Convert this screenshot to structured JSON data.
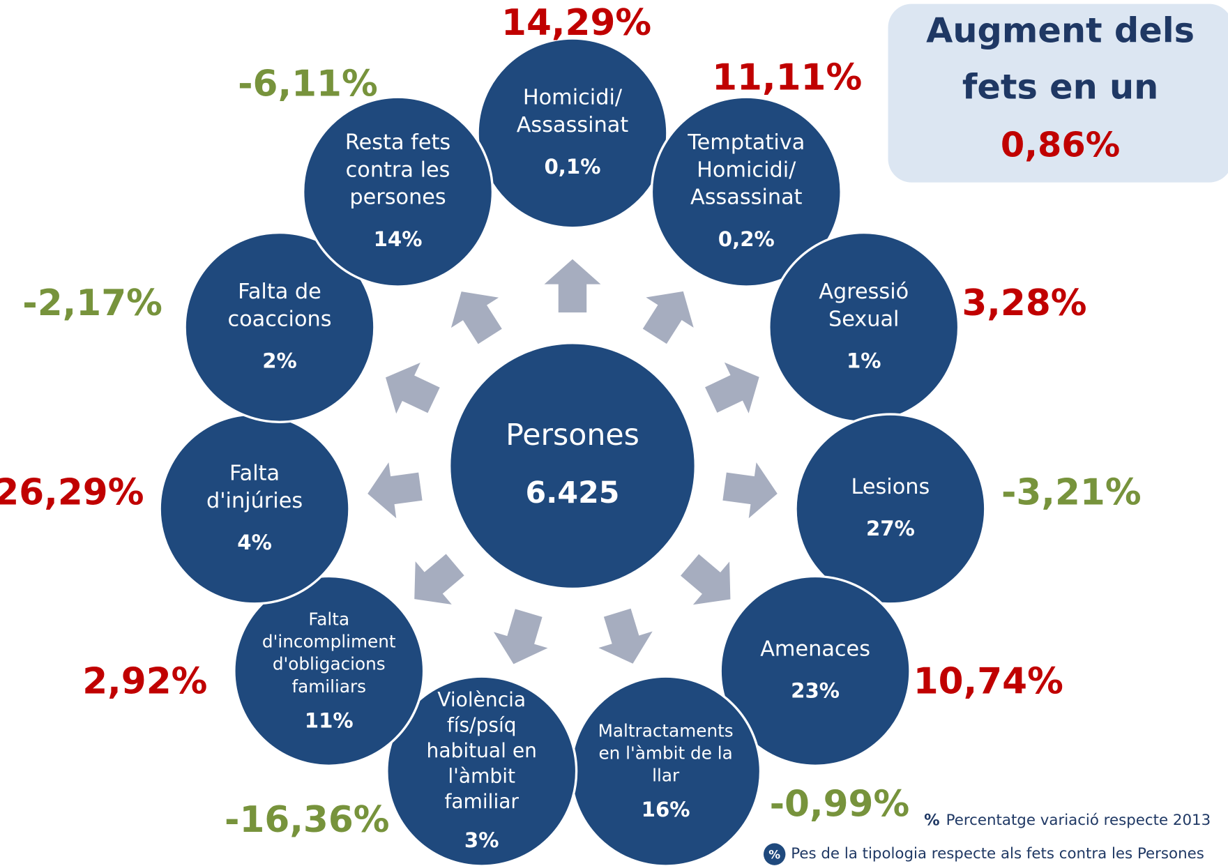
{
  "center": {
    "label": "Persones",
    "value": "6.425"
  },
  "nodes": [
    {
      "label": [
        "Homicidi/",
        "Assassinat"
      ],
      "weight": "0,1%",
      "change": "14,29%",
      "trend": "up"
    },
    {
      "label": [
        "Temptativa",
        "Homicidi/",
        "Assassinat"
      ],
      "weight": "0,2%",
      "change": "11,11%",
      "trend": "up"
    },
    {
      "label": [
        "Agressió",
        "Sexual"
      ],
      "weight": "1%",
      "change": "3,28%",
      "trend": "up"
    },
    {
      "label": [
        "Lesions"
      ],
      "weight": "27%",
      "change": "-3,21%",
      "trend": "down"
    },
    {
      "label": [
        "Amenaces"
      ],
      "weight": "23%",
      "change": "10,74%",
      "trend": "up"
    },
    {
      "label": [
        "Maltractaments",
        "en l'àmbit de la",
        "llar"
      ],
      "weight": "16%",
      "change": "-0,99%",
      "trend": "down"
    },
    {
      "label": [
        "Violència",
        "fís/psíq",
        "habitual en",
        "l'àmbit",
        "familiar"
      ],
      "weight": "3%",
      "change": "-16,36%",
      "trend": "down"
    },
    {
      "label": [
        "Falta",
        "d'incompliment",
        "d'obligacions",
        "familiars"
      ],
      "weight": "11%",
      "change": "2,92%",
      "trend": "up"
    },
    {
      "label": [
        "Falta",
        "d'injúries"
      ],
      "weight": "4%",
      "change": "26,29%",
      "trend": "up"
    },
    {
      "label": [
        "Falta de",
        "coaccions"
      ],
      "weight": "2%",
      "change": "-2,17%",
      "trend": "down"
    },
    {
      "label": [
        "Resta fets",
        "contra les",
        "persones"
      ],
      "weight": "14%",
      "change": "-6,11%",
      "trend": "down"
    }
  ],
  "summary": {
    "lines": [
      "Augment dels",
      "fets en un"
    ],
    "value": "0,86%"
  },
  "legend": [
    {
      "symbol": "%",
      "text": "Percentatge variació respecte 2013"
    },
    {
      "symbol": "%",
      "text": "Pes de la tipologia respecte als fets contra les Persones"
    }
  ],
  "colors": {
    "node": "#1f497d",
    "up": "#c00000",
    "down": "#77933c",
    "arrow": "#a6adbf",
    "box": "#dce6f2",
    "title": "#1f3864"
  }
}
